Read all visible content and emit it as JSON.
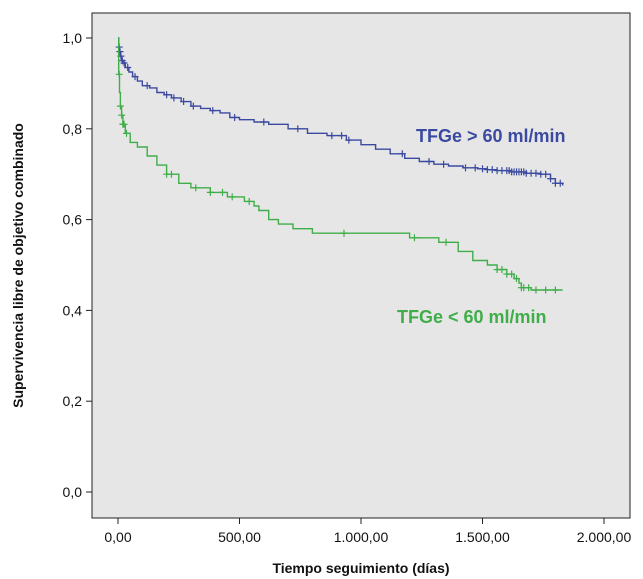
{
  "chart_data": {
    "type": "line",
    "subtype": "kaplan-meier",
    "xlabel": "Tiempo seguimiento (días)",
    "ylabel": "Supervivencia libre de objetivo combinado",
    "xlim": [
      0,
      2000
    ],
    "ylim": [
      0,
      1.0
    ],
    "x_ticks": [
      {
        "value": 0,
        "label": "0,00"
      },
      {
        "value": 500,
        "label": "500,00"
      },
      {
        "value": 1000,
        "label": "1.000,00"
      },
      {
        "value": 1500,
        "label": "1.500,00"
      },
      {
        "value": 2000,
        "label": "2.000,00"
      }
    ],
    "y_ticks": [
      {
        "value": 0.0,
        "label": "0,0"
      },
      {
        "value": 0.2,
        "label": "0,2"
      },
      {
        "value": 0.4,
        "label": "0,4"
      },
      {
        "value": 0.6,
        "label": "0,6"
      },
      {
        "value": 0.8,
        "label": "0,8"
      },
      {
        "value": 1.0,
        "label": "1,0"
      }
    ],
    "grid": false,
    "background_color": "#e6e6e6",
    "series": [
      {
        "name": "TFGe > 60 ml/min",
        "color": "#3b4aa0",
        "step_x": [
          0,
          3,
          6,
          10,
          15,
          20,
          30,
          45,
          60,
          80,
          100,
          130,
          160,
          190,
          220,
          260,
          300,
          340,
          380,
          420,
          460,
          500,
          560,
          620,
          700,
          780,
          860,
          940,
          1000,
          1060,
          1120,
          1180,
          1240,
          1300,
          1360,
          1420,
          1480,
          1520,
          1560,
          1620,
          1680,
          1740,
          1780,
          1800,
          1830
        ],
        "step_y": [
          1.0,
          0.98,
          0.97,
          0.96,
          0.95,
          0.945,
          0.935,
          0.925,
          0.915,
          0.905,
          0.895,
          0.89,
          0.88,
          0.875,
          0.868,
          0.86,
          0.85,
          0.845,
          0.84,
          0.835,
          0.825,
          0.82,
          0.815,
          0.81,
          0.8,
          0.79,
          0.785,
          0.775,
          0.765,
          0.755,
          0.745,
          0.735,
          0.728,
          0.722,
          0.718,
          0.714,
          0.712,
          0.71,
          0.708,
          0.705,
          0.702,
          0.7,
          0.69,
          0.68,
          0.675
        ],
        "censored_x": [
          5,
          8,
          12,
          18,
          25,
          40,
          70,
          120,
          200,
          230,
          270,
          310,
          390,
          480,
          600,
          740,
          880,
          920,
          950,
          1170,
          1280,
          1340,
          1430,
          1470,
          1500,
          1520,
          1540,
          1560,
          1580,
          1600,
          1610,
          1620,
          1630,
          1640,
          1650,
          1660,
          1670,
          1680,
          1700,
          1720,
          1740,
          1760,
          1780,
          1800,
          1820
        ]
      },
      {
        "name": "TFGe < 60 ml/min",
        "color": "#3fae49",
        "step_x": [
          0,
          3,
          6,
          10,
          15,
          20,
          30,
          50,
          80,
          120,
          160,
          200,
          250,
          300,
          380,
          450,
          520,
          560,
          580,
          620,
          660,
          720,
          800,
          900,
          1050,
          1200,
          1320,
          1400,
          1460,
          1520,
          1560,
          1600,
          1630,
          1650,
          1660,
          1700,
          1830
        ],
        "step_y": [
          1.0,
          0.92,
          0.88,
          0.85,
          0.83,
          0.81,
          0.79,
          0.77,
          0.76,
          0.74,
          0.72,
          0.7,
          0.68,
          0.67,
          0.66,
          0.65,
          0.64,
          0.63,
          0.62,
          0.6,
          0.59,
          0.58,
          0.57,
          0.57,
          0.57,
          0.56,
          0.55,
          0.53,
          0.51,
          0.5,
          0.49,
          0.48,
          0.47,
          0.46,
          0.45,
          0.445,
          0.445
        ],
        "censored_x": [
          5,
          10,
          15,
          20,
          25,
          35,
          200,
          220,
          320,
          380,
          430,
          470,
          540,
          930,
          1220,
          1350,
          1560,
          1580,
          1600,
          1620,
          1640,
          1660,
          1670,
          1690,
          1720,
          1760,
          1800
        ]
      }
    ]
  }
}
